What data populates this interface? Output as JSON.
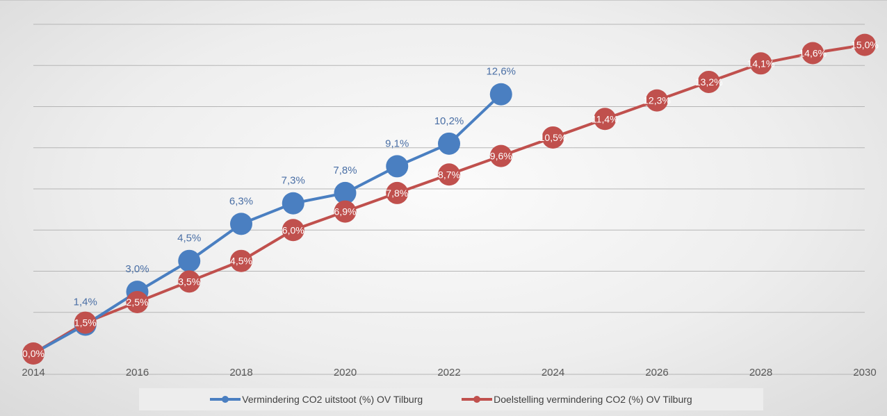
{
  "chart_data": {
    "type": "line",
    "title": "",
    "xlabel": "",
    "ylabel": "",
    "x_tick_labels": [
      "2014",
      "2016",
      "2018",
      "2020",
      "2022",
      "2024",
      "2026",
      "2028",
      "2030"
    ],
    "xlim": [
      2014,
      2030
    ],
    "ylim": [
      0,
      16
    ],
    "grid": "horizontal",
    "legend_position": "bottom",
    "series": [
      {
        "name": "Vermindering CO2 uitstoot (%) OV Tilburg",
        "color": "#4a7fc1",
        "x": [
          2014,
          2015,
          2016,
          2017,
          2018,
          2019,
          2020,
          2021,
          2022,
          2023
        ],
        "values": [
          0.0,
          1.4,
          3.0,
          4.5,
          6.3,
          7.3,
          7.8,
          9.1,
          10.2,
          12.6
        ],
        "labels": [
          "",
          "1,4%",
          "3,0%",
          "4,5%",
          "6,3%",
          "7,3%",
          "7,8%",
          "9,1%",
          "10,2%",
          "12,6%"
        ]
      },
      {
        "name": "Doelstelling vermindering CO2 (%) OV Tilburg",
        "color": "#c0504d",
        "x": [
          2014,
          2015,
          2016,
          2017,
          2018,
          2019,
          2020,
          2021,
          2022,
          2023,
          2024,
          2025,
          2026,
          2027,
          2028,
          2029,
          2030
        ],
        "values": [
          0.0,
          1.5,
          2.5,
          3.5,
          4.5,
          6.0,
          6.9,
          7.8,
          8.7,
          9.6,
          10.5,
          11.4,
          12.3,
          13.2,
          14.1,
          14.6,
          15.0
        ],
        "labels": [
          "0,0%",
          "1,5%",
          "2,5%",
          "3,5%",
          "4,5%",
          "6,0%",
          "6,9%",
          "7,8%",
          "8,7%",
          "9,6%",
          "10,5%",
          "11,4%",
          "12,3%",
          "13,2%",
          "14,1%",
          "14,6%",
          "15,0%"
        ]
      }
    ]
  }
}
